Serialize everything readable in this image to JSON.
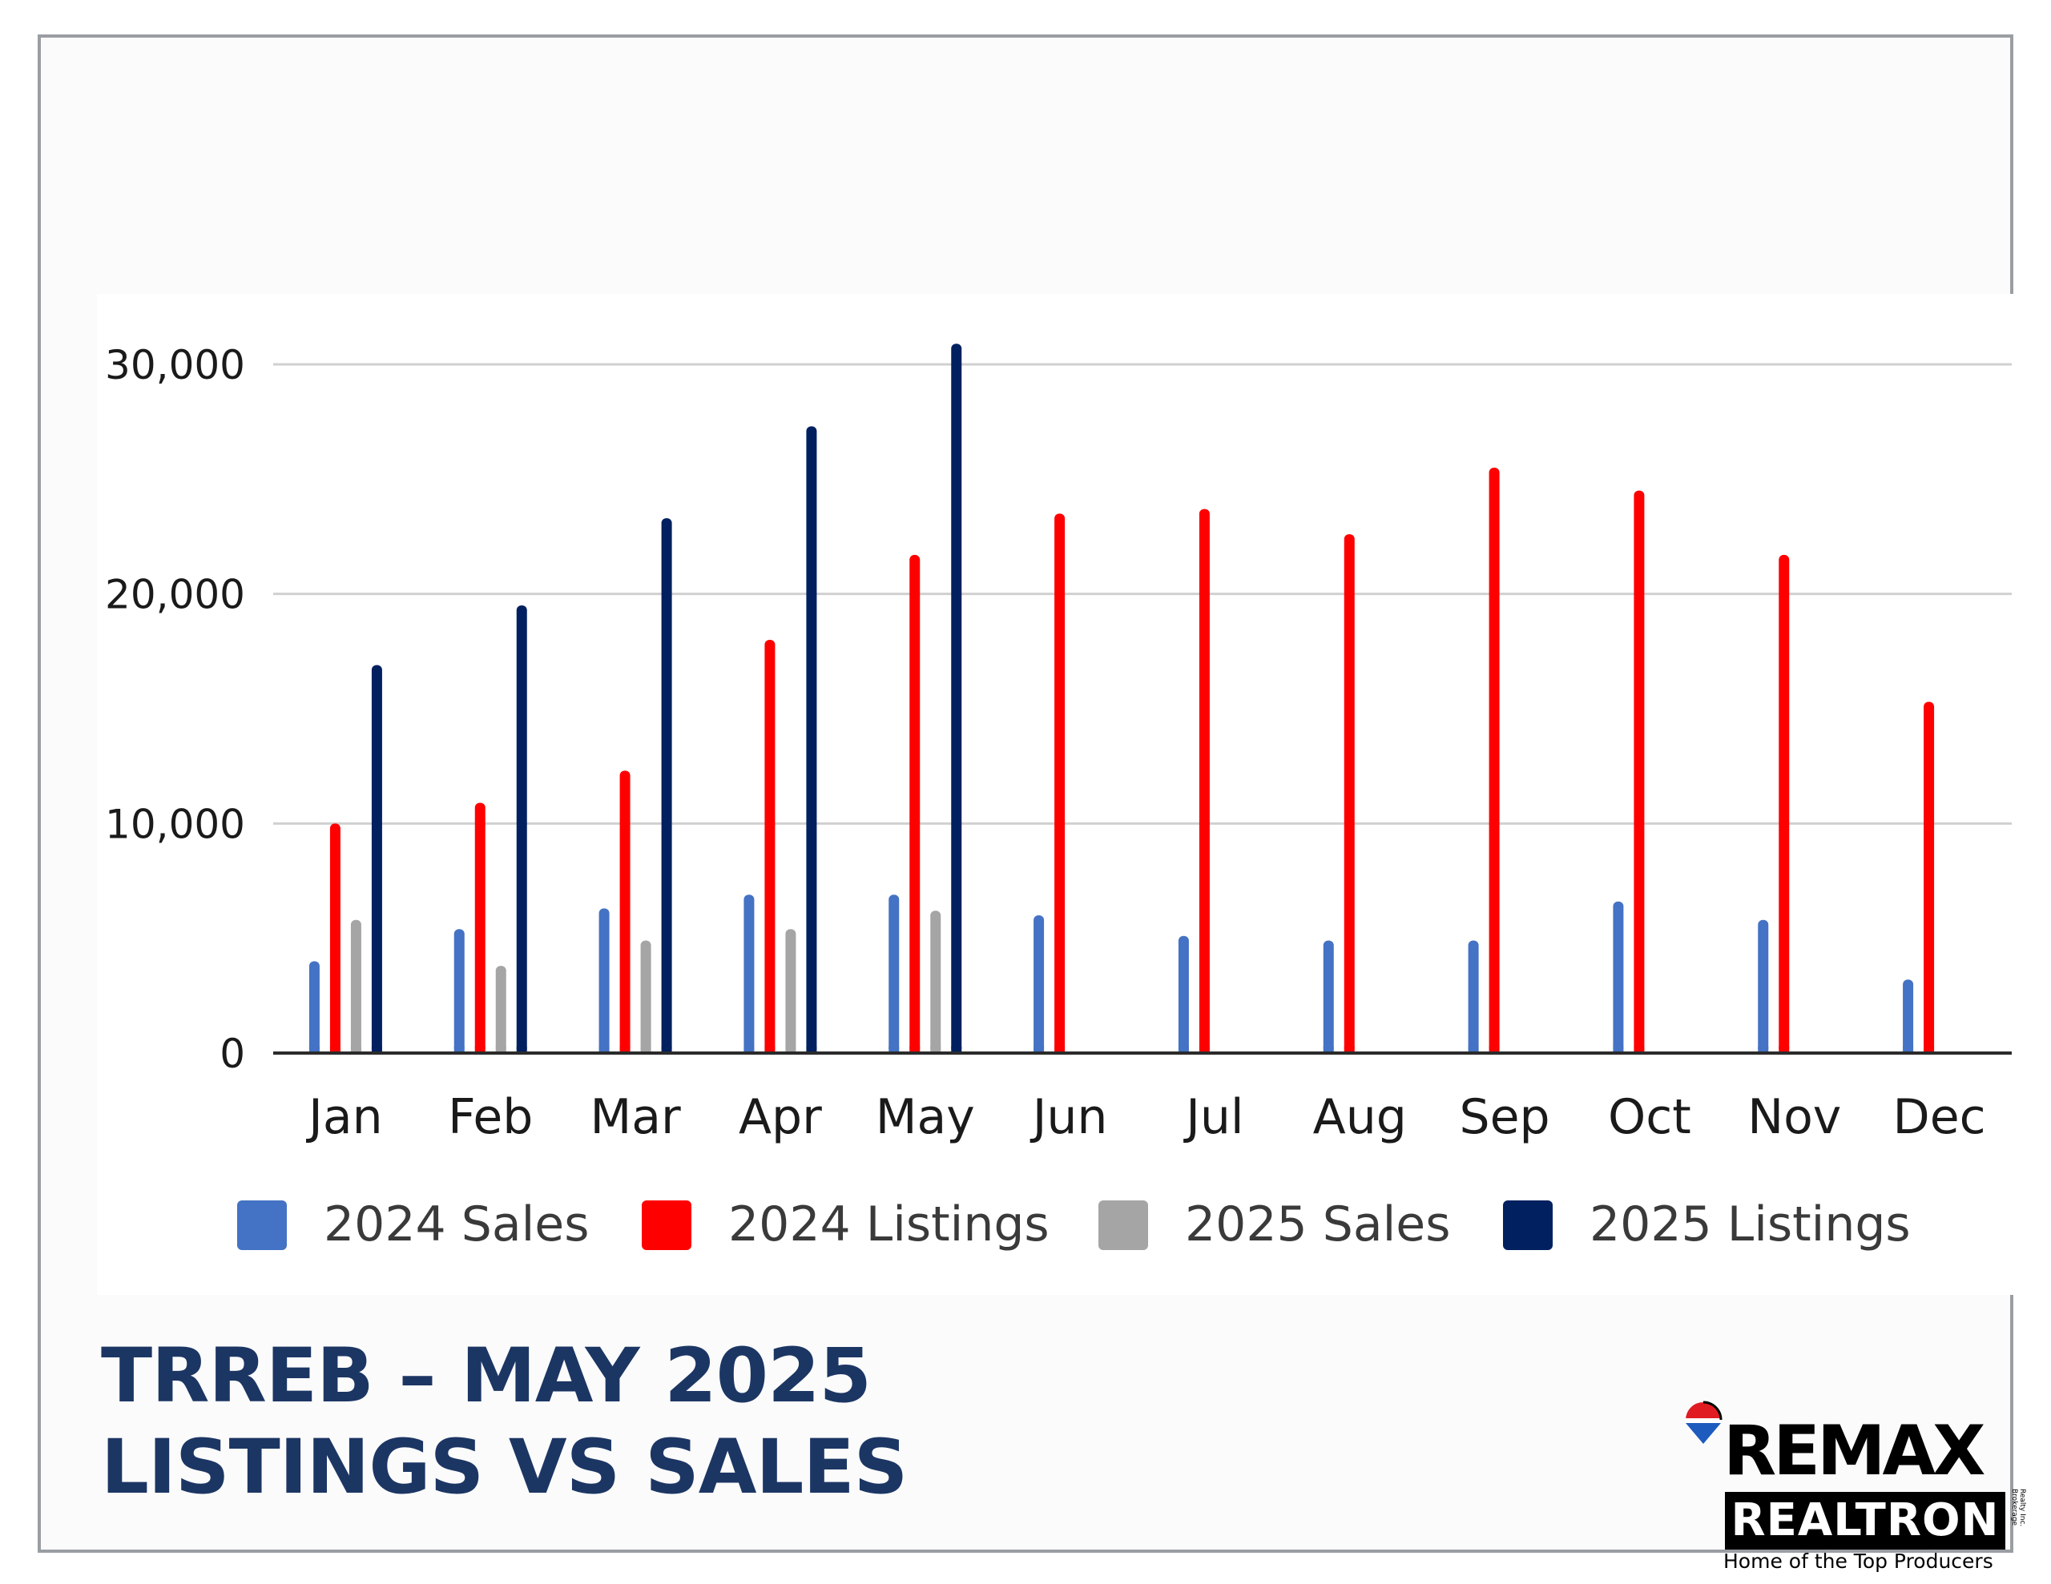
{
  "title": {
    "line1": "TRREB – MAY 2025",
    "line2": "LISTINGS VS SALES"
  },
  "logo": {
    "wordmark": "RE/MAX",
    "word_display": "REMAX",
    "name": "REALTRON",
    "fine_print": "Realty Inc. Brokerage",
    "tagline": "Home of the Top Producers",
    "colors": {
      "red": "#e11b22",
      "blue": "#1d5bbf",
      "black": "#000000"
    }
  },
  "chart_data": {
    "type": "bar",
    "categories": [
      "Jan",
      "Feb",
      "Mar",
      "Apr",
      "May",
      "Jun",
      "Jul",
      "Aug",
      "Sep",
      "Oct",
      "Nov",
      "Dec"
    ],
    "series": [
      {
        "name": "2024 Sales",
        "color": "#4472c4",
        "values": [
          4000,
          5400,
          6300,
          6900,
          6900,
          6000,
          5100,
          4900,
          4900,
          6600,
          5800,
          3200
        ]
      },
      {
        "name": "2024 Listings",
        "color": "#ff0000",
        "values": [
          10000,
          10900,
          12300,
          18000,
          21700,
          23500,
          23700,
          22600,
          25500,
          24500,
          21700,
          15300
        ]
      },
      {
        "name": "2025 Sales",
        "color": "#a5a5a5",
        "values": [
          5800,
          3800,
          4900,
          5400,
          6200,
          null,
          null,
          null,
          null,
          null,
          null,
          null
        ]
      },
      {
        "name": "2025 Listings",
        "color": "#002060",
        "values": [
          16900,
          19500,
          23300,
          27300,
          30900,
          null,
          null,
          null,
          null,
          null,
          null,
          null
        ]
      }
    ],
    "yticks": [
      "0",
      "10,000",
      "20,000",
      "30,000"
    ],
    "ytick_values": [
      0,
      10000,
      20000,
      30000
    ],
    "ylim": [
      0,
      30000
    ],
    "grid": true,
    "legend_position": "bottom"
  }
}
